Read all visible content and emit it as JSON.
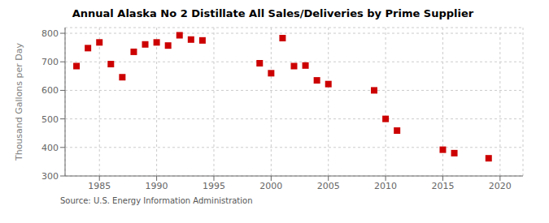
{
  "chart_data": {
    "type": "scatter",
    "title": "Annual Alaska No 2 Distillate All Sales/Deliveries by Prime Supplier",
    "ylabel": "Thousand Gallons per Day",
    "annotations": [
      "Source: U.S. Energy Information Administration"
    ],
    "color": "#cc0000",
    "marker": "square",
    "grid": true,
    "xlim": [
      1982,
      2022
    ],
    "ylim": [
      300,
      820
    ],
    "xticks": [
      1985,
      1990,
      1995,
      2000,
      2005,
      2010,
      2015,
      2020
    ],
    "yticks": [
      300,
      400,
      500,
      600,
      700,
      800
    ],
    "x": [
      1983,
      1984,
      1985,
      1986,
      1987,
      1988,
      1989,
      1990,
      1991,
      1992,
      1993,
      1994,
      1999,
      2000,
      2001,
      2002,
      2003,
      2004,
      2005,
      2009,
      2010,
      2011,
      2015,
      2016,
      2019
    ],
    "values": [
      685,
      748,
      768,
      692,
      646,
      735,
      761,
      768,
      757,
      793,
      778,
      775,
      695,
      660,
      783,
      685,
      687,
      635,
      622,
      600,
      500,
      459,
      392,
      380,
      362
    ]
  }
}
